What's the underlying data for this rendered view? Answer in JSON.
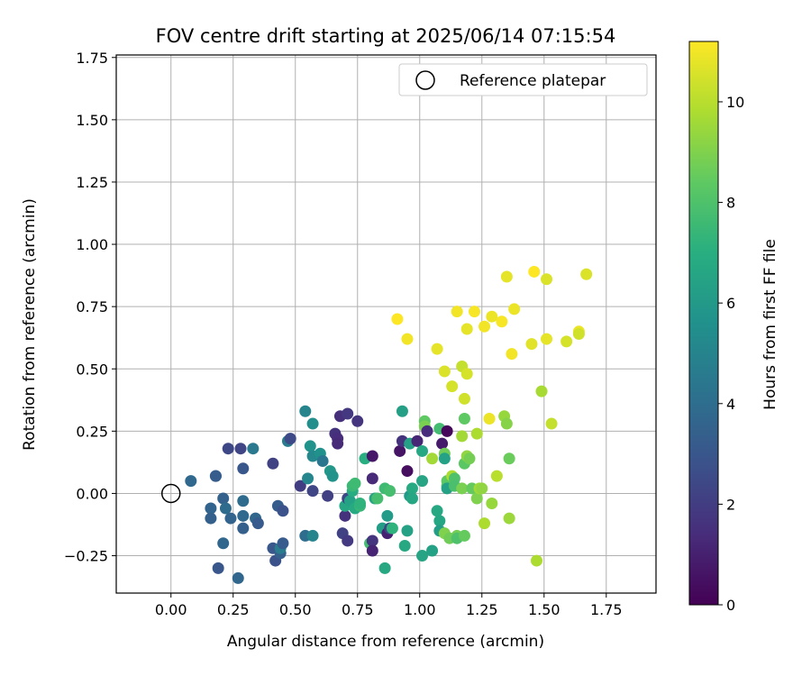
{
  "chart_data": {
    "type": "scatter",
    "title": "FOV centre drift starting at 2025/06/14 07:15:54",
    "xlabel": "Angular distance from reference (arcmin)",
    "ylabel": "Rotation from reference (arcmin)",
    "xlim": [
      -0.22,
      1.95
    ],
    "ylim": [
      -0.4,
      1.76
    ],
    "xticks": [
      0.0,
      0.25,
      0.5,
      0.75,
      1.0,
      1.25,
      1.5,
      1.75
    ],
    "xtick_labels": [
      "0.00",
      "0.25",
      "0.50",
      "0.75",
      "1.00",
      "1.25",
      "1.50",
      "1.75"
    ],
    "yticks": [
      -0.25,
      0.0,
      0.25,
      0.5,
      0.75,
      1.0,
      1.25,
      1.5,
      1.75
    ],
    "ytick_labels": [
      "−0.25",
      "0.00",
      "0.25",
      "0.50",
      "0.75",
      "1.00",
      "1.25",
      "1.50",
      "1.75"
    ],
    "grid": true,
    "legend": {
      "placement": "top-right",
      "entries": [
        "Reference platepar"
      ]
    },
    "reference_point": {
      "x": 0.0,
      "y": 0.0,
      "label": "Reference platepar"
    },
    "colorbar": {
      "label": "Hours from first FF file",
      "colormap": "viridis",
      "range": [
        0,
        11.2
      ],
      "ticks": [
        0,
        2,
        4,
        6,
        8,
        10
      ],
      "tick_labels": [
        "0",
        "2",
        "4",
        "6",
        "8",
        "10"
      ]
    },
    "points": [
      [
        0.08,
        0.05,
        3.8
      ],
      [
        0.18,
        0.07,
        3.5
      ],
      [
        0.18,
        0.07,
        3.3
      ],
      [
        0.16,
        -0.06,
        3.6
      ],
      [
        0.16,
        -0.1,
        3.4
      ],
      [
        0.19,
        -0.3,
        3.0
      ],
      [
        0.21,
        -0.2,
        3.7
      ],
      [
        0.21,
        -0.02,
        3.5
      ],
      [
        0.22,
        -0.06,
        3.9
      ],
      [
        0.23,
        0.18,
        2.4
      ],
      [
        0.24,
        -0.1,
        3.6
      ],
      [
        0.27,
        -0.34,
        3.7
      ],
      [
        0.28,
        0.18,
        2.3
      ],
      [
        0.29,
        0.1,
        3.0
      ],
      [
        0.29,
        -0.09,
        3.8
      ],
      [
        0.29,
        -0.14,
        3.4
      ],
      [
        0.29,
        -0.03,
        3.9
      ],
      [
        0.33,
        0.18,
        4.5
      ],
      [
        0.34,
        -0.1,
        3.7
      ],
      [
        0.35,
        -0.12,
        3.2
      ],
      [
        0.41,
        0.12,
        2.2
      ],
      [
        0.41,
        -0.22,
        3.0
      ],
      [
        0.42,
        -0.27,
        2.8
      ],
      [
        0.43,
        -0.05,
        3.3
      ],
      [
        0.44,
        -0.24,
        3.4
      ],
      [
        0.44,
        -0.22,
        4.6
      ],
      [
        0.45,
        -0.07,
        2.8
      ],
      [
        0.45,
        -0.2,
        3.2
      ],
      [
        0.47,
        0.21,
        4.6
      ],
      [
        0.48,
        0.22,
        2.5
      ],
      [
        0.52,
        0.03,
        2.0
      ],
      [
        0.54,
        0.33,
        5.0
      ],
      [
        0.54,
        -0.17,
        4.0
      ],
      [
        0.55,
        0.06,
        5.1
      ],
      [
        0.56,
        0.19,
        5.7
      ],
      [
        0.57,
        0.28,
        5.5
      ],
      [
        0.57,
        0.01,
        2.3
      ],
      [
        0.57,
        -0.17,
        5.0
      ],
      [
        0.57,
        0.15,
        5.2
      ],
      [
        0.6,
        0.16,
        5.6
      ],
      [
        0.61,
        0.13,
        4.4
      ],
      [
        0.63,
        -0.01,
        2.1
      ],
      [
        0.64,
        0.09,
        5.9
      ],
      [
        0.65,
        0.07,
        5.7
      ],
      [
        0.66,
        0.24,
        1.6
      ],
      [
        0.67,
        0.22,
        1.4
      ],
      [
        0.67,
        0.2,
        1.3
      ],
      [
        0.68,
        0.31,
        1.5
      ],
      [
        0.69,
        -0.16,
        2.2
      ],
      [
        0.7,
        -0.09,
        1.6
      ],
      [
        0.7,
        -0.05,
        6.6
      ],
      [
        0.71,
        0.32,
        1.8
      ],
      [
        0.71,
        -0.19,
        1.9
      ],
      [
        0.71,
        -0.02,
        2.4
      ],
      [
        0.72,
        -0.03,
        6.4
      ],
      [
        0.73,
        0.01,
        6.9
      ],
      [
        0.73,
        0.03,
        7.5
      ],
      [
        0.74,
        0.04,
        7.6
      ],
      [
        0.74,
        -0.06,
        6.8
      ],
      [
        0.75,
        0.29,
        1.7
      ],
      [
        0.76,
        -0.05,
        7.4
      ],
      [
        0.76,
        -0.04,
        7.2
      ],
      [
        0.78,
        0.14,
        7.0
      ],
      [
        0.8,
        -0.2,
        7.7
      ],
      [
        0.81,
        -0.19,
        1.7
      ],
      [
        0.81,
        0.15,
        0.7
      ],
      [
        0.81,
        0.06,
        1.3
      ],
      [
        0.81,
        -0.23,
        1.1
      ],
      [
        0.82,
        -0.02,
        6.5
      ],
      [
        0.83,
        -0.02,
        7.8
      ],
      [
        0.85,
        -0.14,
        6.2
      ],
      [
        0.86,
        -0.3,
        6.7
      ],
      [
        0.86,
        0.02,
        7.6
      ],
      [
        0.87,
        -0.16,
        1.0
      ],
      [
        0.87,
        -0.09,
        6.1
      ],
      [
        0.88,
        -0.14,
        2.4
      ],
      [
        0.88,
        0.01,
        7.8
      ],
      [
        0.89,
        -0.14,
        7.2
      ],
      [
        0.91,
        0.7,
        11.2
      ],
      [
        0.92,
        0.17,
        0.6
      ],
      [
        0.93,
        0.33,
        6.3
      ],
      [
        0.93,
        0.21,
        1.6
      ],
      [
        0.94,
        -0.21,
        6.7
      ],
      [
        0.95,
        -0.15,
        6.4
      ],
      [
        0.95,
        0.09,
        0.4
      ],
      [
        0.95,
        0.62,
        11.0
      ],
      [
        0.96,
        0.2,
        6.3
      ],
      [
        0.96,
        -0.01,
        6.0
      ],
      [
        0.97,
        0.02,
        6.8
      ],
      [
        0.97,
        -0.02,
        6.6
      ],
      [
        0.99,
        0.21,
        1.2
      ],
      [
        1.01,
        0.05,
        6.5
      ],
      [
        1.01,
        0.17,
        6.7
      ],
      [
        1.01,
        -0.25,
        6.5
      ],
      [
        1.02,
        0.29,
        8.4
      ],
      [
        1.02,
        0.27,
        8.9
      ],
      [
        1.03,
        0.25,
        1.4
      ],
      [
        1.05,
        -0.23,
        6.4
      ],
      [
        1.05,
        0.14,
        9.6
      ],
      [
        1.07,
        0.58,
        10.8
      ],
      [
        1.07,
        -0.07,
        6.7
      ],
      [
        1.08,
        -0.11,
        6.6
      ],
      [
        1.08,
        0.26,
        7.7
      ],
      [
        1.08,
        -0.15,
        6.2
      ],
      [
        1.09,
        0.2,
        0.8
      ],
      [
        1.1,
        0.49,
        10.6
      ],
      [
        1.1,
        0.16,
        8.7
      ],
      [
        1.1,
        -0.16,
        9.0
      ],
      [
        1.1,
        0.14,
        6.4
      ],
      [
        1.11,
        0.25,
        0.2
      ],
      [
        1.11,
        0.05,
        8.4
      ],
      [
        1.11,
        0.03,
        8.3
      ],
      [
        1.11,
        0.02,
        6.4
      ],
      [
        1.12,
        -0.18,
        8.7
      ],
      [
        1.13,
        0.07,
        9.8
      ],
      [
        1.13,
        0.43,
        10.5
      ],
      [
        1.14,
        0.06,
        8.0
      ],
      [
        1.14,
        0.03,
        7.9
      ],
      [
        1.15,
        -0.17,
        8.8
      ],
      [
        1.15,
        -0.18,
        8.0
      ],
      [
        1.15,
        0.73,
        11.0
      ],
      [
        1.17,
        0.51,
        10.2
      ],
      [
        1.17,
        0.23,
        9.6
      ],
      [
        1.17,
        0.02,
        8.9
      ],
      [
        1.18,
        0.38,
        10.4
      ],
      [
        1.18,
        0.3,
        8.4
      ],
      [
        1.18,
        -0.17,
        8.5
      ],
      [
        1.18,
        0.12,
        8.3
      ],
      [
        1.19,
        0.66,
        10.8
      ],
      [
        1.19,
        0.48,
        10.5
      ],
      [
        1.19,
        0.15,
        9.3
      ],
      [
        1.2,
        0.14,
        8.8
      ],
      [
        1.21,
        0.02,
        8.5
      ],
      [
        1.22,
        0.73,
        11.1
      ],
      [
        1.23,
        -0.02,
        9.0
      ],
      [
        1.23,
        0.24,
        9.8
      ],
      [
        1.24,
        0.02,
        9.6
      ],
      [
        1.25,
        0.02,
        9.3
      ],
      [
        1.26,
        0.67,
        11.0
      ],
      [
        1.26,
        -0.12,
        9.8
      ],
      [
        1.28,
        0.3,
        10.9
      ],
      [
        1.29,
        0.71,
        10.9
      ],
      [
        1.29,
        -0.04,
        9.4
      ],
      [
        1.31,
        0.07,
        10.0
      ],
      [
        1.33,
        0.69,
        11.1
      ],
      [
        1.34,
        0.31,
        9.4
      ],
      [
        1.35,
        0.28,
        9.1
      ],
      [
        1.35,
        0.87,
        10.8
      ],
      [
        1.36,
        0.14,
        8.6
      ],
      [
        1.36,
        -0.1,
        9.5
      ],
      [
        1.37,
        0.56,
        11.0
      ],
      [
        1.38,
        0.74,
        10.9
      ],
      [
        1.45,
        0.6,
        10.7
      ],
      [
        1.46,
        0.89,
        11.2
      ],
      [
        1.47,
        -0.27,
        9.8
      ],
      [
        1.49,
        0.41,
        9.7
      ],
      [
        1.51,
        0.86,
        10.6
      ],
      [
        1.51,
        0.62,
        10.8
      ],
      [
        1.53,
        0.28,
        10.2
      ],
      [
        1.59,
        0.61,
        10.5
      ],
      [
        1.64,
        0.65,
        10.9
      ],
      [
        1.64,
        0.64,
        10.4
      ],
      [
        1.67,
        0.88,
        10.6
      ]
    ]
  }
}
